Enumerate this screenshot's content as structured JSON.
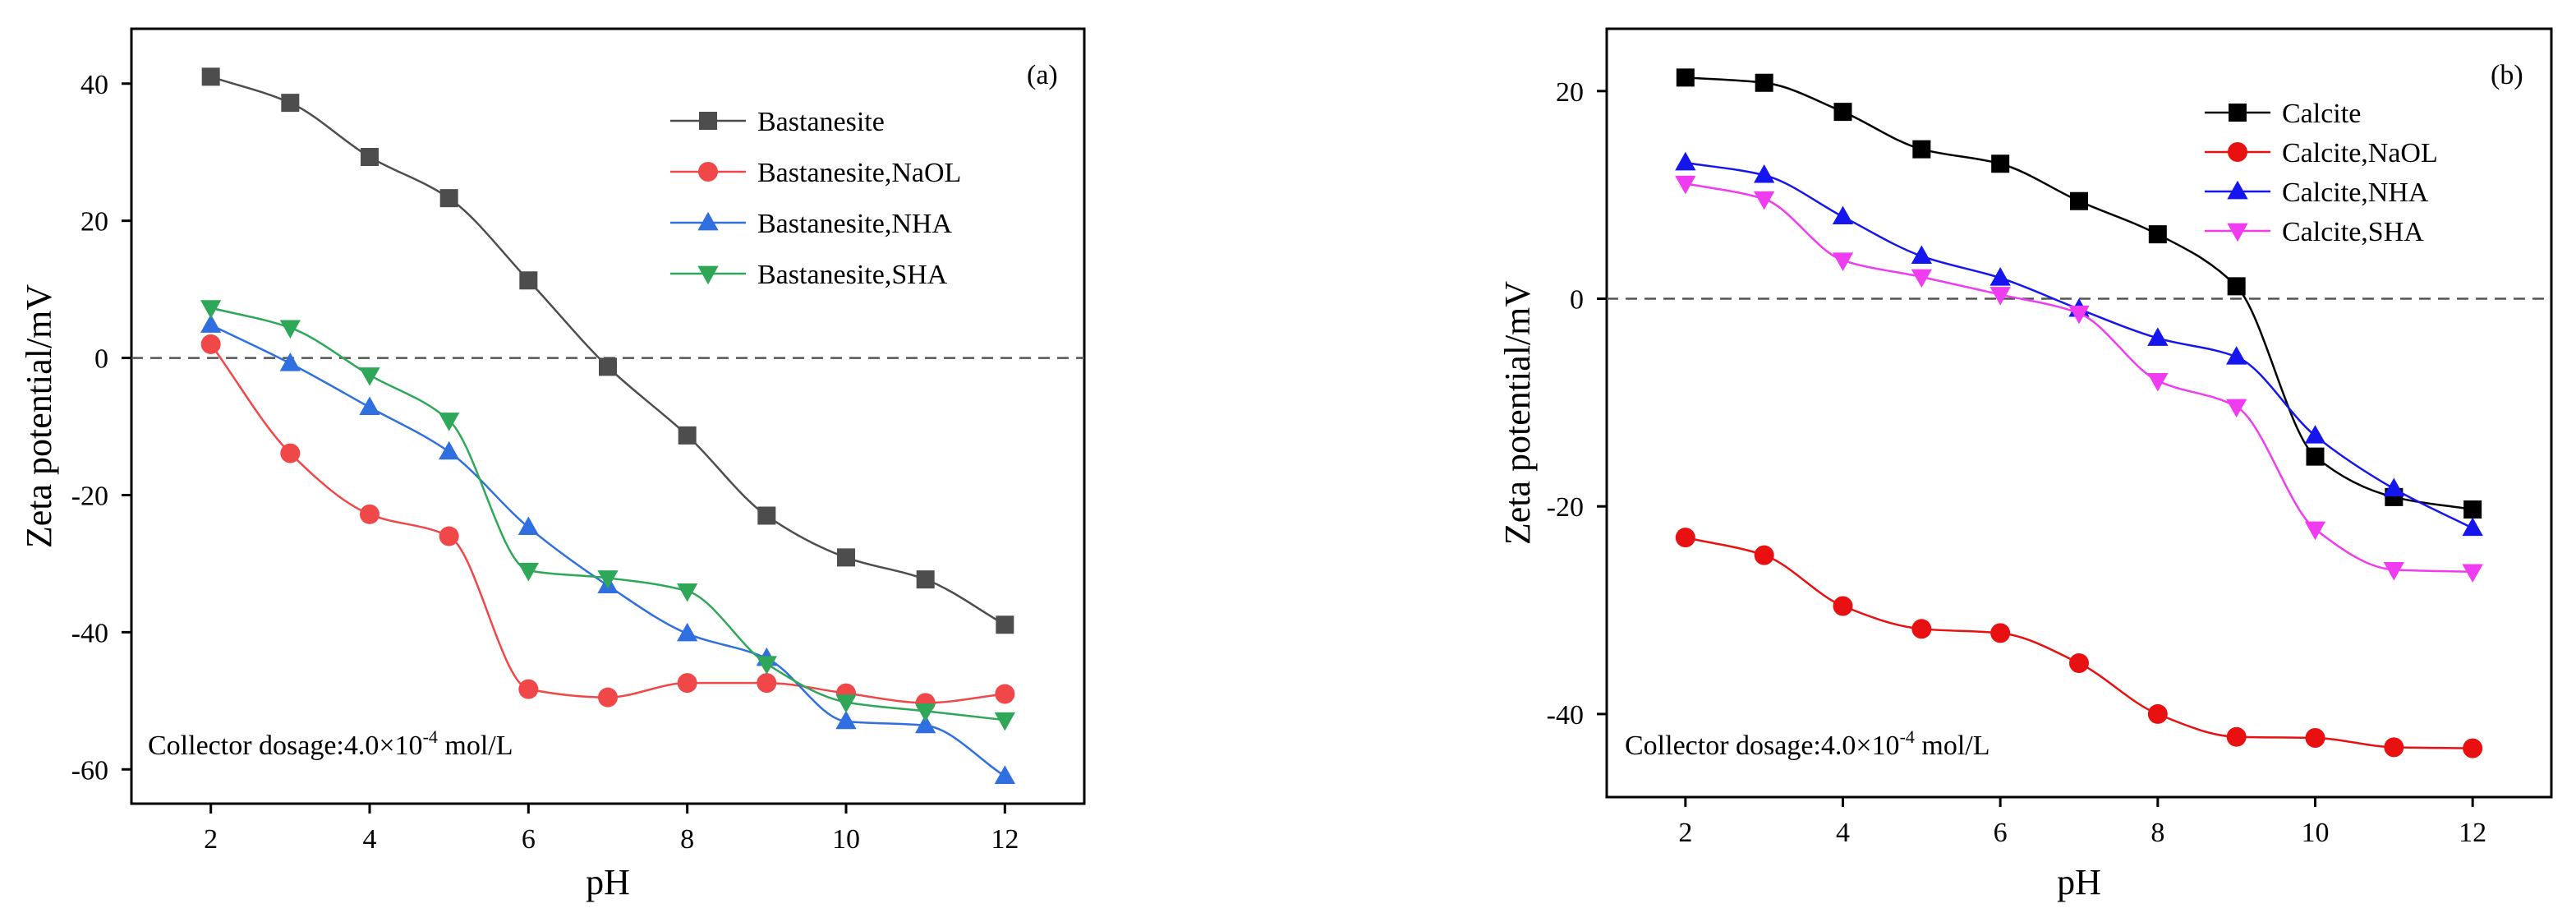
{
  "chart_data": [
    {
      "type": "line",
      "panel_label": "(a)",
      "xlabel": "pH",
      "ylabel": "Zeta potential/mV",
      "xlim": [
        1,
        13
      ],
      "ylim": [
        -65,
        48
      ],
      "xticks": [
        2,
        4,
        6,
        8,
        10,
        12
      ],
      "yticks": [
        -60,
        -40,
        -20,
        0,
        20,
        40
      ],
      "zero_line": true,
      "legend_position": "top-right",
      "note": {
        "prefix": "Collector dosage:4.0×10",
        "exponent": "-4",
        "suffix": " mol/L"
      },
      "x": [
        2,
        3,
        4,
        5,
        6,
        7,
        8,
        9,
        10,
        11,
        12
      ],
      "series": [
        {
          "name": "Bastanesite",
          "color": "#4d4d4d",
          "marker": "square",
          "values": [
            41,
            37.2,
            29.3,
            23.3,
            11.3,
            -1.3,
            -11.3,
            -23,
            -29.1,
            -32.3,
            -38.9
          ]
        },
        {
          "name": "Bastanesite,NaOL",
          "color": "#f04848",
          "marker": "circle",
          "values": [
            2,
            -13.9,
            -22.8,
            -26,
            -48.3,
            -49.5,
            -47.4,
            -47.4,
            -48.9,
            -50.3,
            -49
          ]
        },
        {
          "name": "Bastanesite,NHA",
          "color": "#2f6fe0",
          "marker": "triangle-up",
          "values": [
            4.8,
            -0.8,
            -7.2,
            -13.7,
            -24.7,
            -33.2,
            -40.2,
            -43.8,
            -53,
            -53.6,
            -61
          ]
        },
        {
          "name": "Bastanesite,SHA",
          "color": "#2ea858",
          "marker": "triangle-down",
          "values": [
            7.3,
            4.4,
            -2.5,
            -9.1,
            -31,
            -32.1,
            -34,
            -44.6,
            -50.2,
            -51.5,
            -52.8
          ]
        }
      ]
    },
    {
      "type": "line",
      "panel_label": "(b)",
      "xlabel": "pH",
      "ylabel": "Zeta potential/mV",
      "xlim": [
        1,
        13
      ],
      "ylim": [
        -48,
        26
      ],
      "xticks": [
        2,
        4,
        6,
        8,
        10,
        12
      ],
      "yticks": [
        -40,
        -20,
        0,
        20
      ],
      "zero_line": true,
      "legend_position": "top-right",
      "note": {
        "prefix": "Collector dosage:4.0×10",
        "exponent": "-4",
        "suffix": " mol/L"
      },
      "x": [
        2,
        3,
        4,
        5,
        6,
        7,
        8,
        9,
        10,
        11,
        12
      ],
      "series": [
        {
          "name": "Calcite",
          "color": "#000000",
          "marker": "square",
          "values": [
            21.3,
            20.8,
            18,
            14.4,
            13,
            9.4,
            6.2,
            1.2,
            -15.2,
            -19.1,
            -20.3
          ]
        },
        {
          "name": "Calcite,NaOL",
          "color": "#e81010",
          "marker": "circle",
          "values": [
            -23,
            -24.7,
            -29.6,
            -31.8,
            -32.2,
            -35.1,
            -40,
            -42.2,
            -42.3,
            -43.2,
            -43.3
          ]
        },
        {
          "name": "Calcite,NHA",
          "color": "#1515ee",
          "marker": "triangle-up",
          "values": [
            13.1,
            11.9,
            7.9,
            4.1,
            2,
            -1,
            -3.8,
            -5.6,
            -13.2,
            -18.3,
            -22.1
          ]
        },
        {
          "name": "Calcite,SHA",
          "color": "#f03cf0",
          "marker": "triangle-down",
          "values": [
            11.1,
            9.6,
            3.7,
            2.1,
            0.4,
            -1.4,
            -7.9,
            -10.4,
            -22.2,
            -26.1,
            -26.3
          ]
        }
      ]
    }
  ]
}
